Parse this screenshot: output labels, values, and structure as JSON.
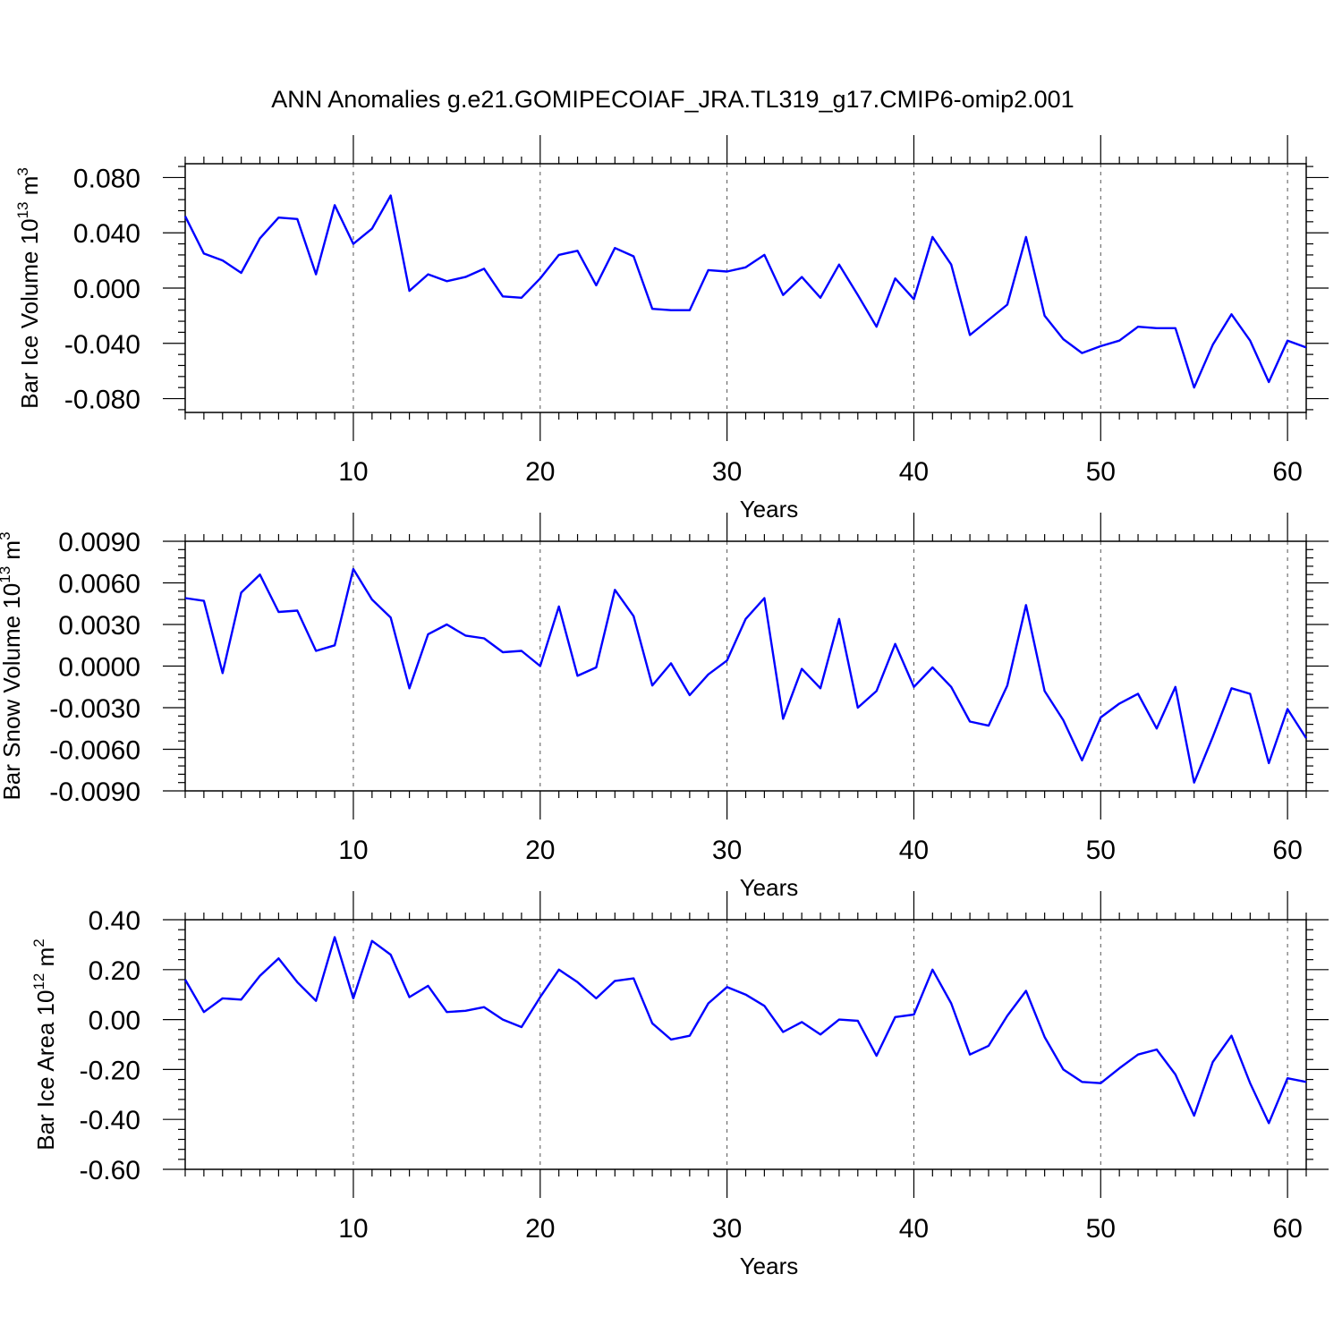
{
  "figure": {
    "title": "ANN Anomalies g.e21.GOMIPECOIAF_JRA.TL319_g17.CMIP6-omip2.001",
    "line_color": "#0000ff"
  },
  "chart_data": [
    {
      "type": "line",
      "title": "",
      "xlabel": "Years",
      "ylabel": "Bar Ice Volume 10",
      "ylabel_sup": "13",
      "ylabel_unit": "m",
      "ylabel_unit_sup": "3",
      "xlim": [
        1,
        61
      ],
      "ylim": [
        -0.09,
        0.09
      ],
      "x_ticks": [
        10,
        20,
        30,
        40,
        50,
        60
      ],
      "y_ticks": [
        0.08,
        0.04,
        0.0,
        -0.04,
        -0.08
      ],
      "y_tick_labels": [
        "0.080",
        "0.040",
        "0.000",
        "-0.040",
        "-0.080"
      ],
      "grid": "vertical dashed at major x ticks",
      "series": [
        {
          "x": [
            1,
            2,
            3,
            4,
            5,
            6,
            7,
            8,
            9,
            10,
            11,
            12,
            13,
            14,
            15,
            16,
            17,
            18,
            19,
            20,
            21,
            22,
            23,
            24,
            25,
            26,
            27,
            28,
            29,
            30,
            31,
            32,
            33,
            34,
            35,
            36,
            37,
            38,
            39,
            40,
            41,
            42,
            43,
            44,
            45,
            46,
            47,
            48,
            49,
            50,
            51,
            52,
            53,
            54,
            55,
            56,
            57,
            58,
            59,
            60,
            61
          ],
          "values": [
            0.052,
            0.025,
            0.02,
            0.011,
            0.036,
            0.051,
            0.05,
            0.01,
            0.06,
            0.032,
            0.043,
            0.067,
            -0.002,
            0.01,
            0.005,
            0.008,
            0.014,
            -0.006,
            -0.007,
            0.007,
            0.024,
            0.027,
            0.002,
            0.029,
            0.023,
            -0.015,
            -0.016,
            -0.016,
            0.013,
            0.012,
            0.015,
            0.024,
            -0.005,
            0.008,
            -0.007,
            0.017,
            -0.005,
            -0.028,
            0.007,
            -0.008,
            0.037,
            0.017,
            -0.034,
            -0.023,
            -0.012,
            0.037,
            -0.02,
            -0.037,
            -0.047,
            -0.042,
            -0.038,
            -0.028,
            -0.029,
            -0.029,
            -0.072,
            -0.041,
            -0.019,
            -0.038,
            -0.068,
            -0.038,
            -0.043
          ]
        }
      ]
    },
    {
      "type": "line",
      "title": "",
      "xlabel": "Years",
      "ylabel": "Bar Snow Volume 10",
      "ylabel_sup": "13",
      "ylabel_unit": "m",
      "ylabel_unit_sup": "3",
      "xlim": [
        1,
        61
      ],
      "ylim": [
        -0.009,
        0.009
      ],
      "x_ticks": [
        10,
        20,
        30,
        40,
        50,
        60
      ],
      "y_ticks": [
        0.009,
        0.006,
        0.003,
        0.0,
        -0.003,
        -0.006,
        -0.009
      ],
      "y_tick_labels": [
        "0.0090",
        "0.0060",
        "0.0030",
        "0.0000",
        "-0.0030",
        "-0.0060",
        "-0.0090"
      ],
      "grid": "vertical dashed at major x ticks",
      "series": [
        {
          "x": [
            1,
            2,
            3,
            4,
            5,
            6,
            7,
            8,
            9,
            10,
            11,
            12,
            13,
            14,
            15,
            16,
            17,
            18,
            19,
            20,
            21,
            22,
            23,
            24,
            25,
            26,
            27,
            28,
            29,
            30,
            31,
            32,
            33,
            34,
            35,
            36,
            37,
            38,
            39,
            40,
            41,
            42,
            43,
            44,
            45,
            46,
            47,
            48,
            49,
            50,
            51,
            52,
            53,
            54,
            55,
            56,
            57,
            58,
            59,
            60,
            61
          ],
          "values": [
            0.0049,
            0.0047,
            -0.0005,
            0.0053,
            0.0066,
            0.0039,
            0.004,
            0.0011,
            0.0015,
            0.007,
            0.0048,
            0.0035,
            -0.0016,
            0.0023,
            0.003,
            0.0022,
            0.002,
            0.001,
            0.0011,
            0.0,
            0.0043,
            -0.0007,
            -0.0001,
            0.0055,
            0.0036,
            -0.0014,
            0.0002,
            -0.0021,
            -0.0006,
            0.0004,
            0.0034,
            0.0049,
            -0.0038,
            -0.0002,
            -0.0016,
            0.0034,
            -0.003,
            -0.0018,
            0.0016,
            -0.0015,
            -0.0001,
            -0.0015,
            -0.004,
            -0.0043,
            -0.0014,
            0.0044,
            -0.0018,
            -0.0039,
            -0.0068,
            -0.0037,
            -0.0027,
            -0.002,
            -0.0045,
            -0.0015,
            -0.0084,
            -0.0051,
            -0.0016,
            -0.002,
            -0.007,
            -0.0031,
            -0.0052
          ]
        }
      ]
    },
    {
      "type": "line",
      "title": "",
      "xlabel": "Years",
      "ylabel": "Bar Ice Area 10",
      "ylabel_sup": "12",
      "ylabel_unit": "m",
      "ylabel_unit_sup": "2",
      "xlim": [
        1,
        61
      ],
      "ylim": [
        -0.6,
        0.4
      ],
      "x_ticks": [
        10,
        20,
        30,
        40,
        50,
        60
      ],
      "y_ticks": [
        0.4,
        0.2,
        0.0,
        -0.2,
        -0.4,
        -0.6
      ],
      "y_tick_labels": [
        "0.40",
        "0.20",
        "0.00",
        "-0.20",
        "-0.40",
        "-0.60"
      ],
      "grid": "vertical dashed at major x ticks",
      "series": [
        {
          "x": [
            1,
            2,
            3,
            4,
            5,
            6,
            7,
            8,
            9,
            10,
            11,
            12,
            13,
            14,
            15,
            16,
            17,
            18,
            19,
            20,
            21,
            22,
            23,
            24,
            25,
            26,
            27,
            28,
            29,
            30,
            31,
            32,
            33,
            34,
            35,
            36,
            37,
            38,
            39,
            40,
            41,
            42,
            43,
            44,
            45,
            46,
            47,
            48,
            49,
            50,
            51,
            52,
            53,
            54,
            55,
            56,
            57,
            58,
            59,
            60,
            61
          ],
          "values": [
            0.16,
            0.03,
            0.085,
            0.08,
            0.175,
            0.245,
            0.15,
            0.075,
            0.33,
            0.085,
            0.315,
            0.26,
            0.09,
            0.135,
            0.03,
            0.035,
            0.05,
            0.0,
            -0.03,
            0.09,
            0.2,
            0.15,
            0.085,
            0.155,
            0.165,
            -0.015,
            -0.08,
            -0.065,
            0.065,
            0.13,
            0.1,
            0.055,
            -0.05,
            -0.01,
            -0.06,
            0.0,
            -0.005,
            -0.145,
            0.01,
            0.02,
            0.2,
            0.065,
            -0.14,
            -0.105,
            0.015,
            0.115,
            -0.07,
            -0.2,
            -0.25,
            -0.255,
            -0.195,
            -0.14,
            -0.12,
            -0.22,
            -0.385,
            -0.17,
            -0.065,
            -0.255,
            -0.415,
            -0.235,
            -0.25
          ]
        }
      ]
    }
  ]
}
